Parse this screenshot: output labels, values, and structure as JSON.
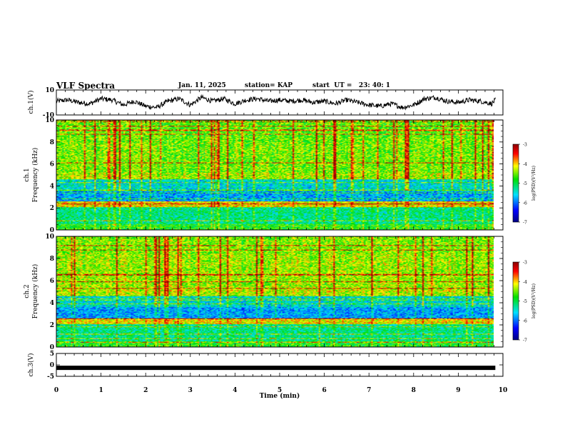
{
  "header": {
    "title": "VLF Spectra",
    "date": "Jan. 11, 2025",
    "station": "station= KAP",
    "start": "start  UT =   23: 40: 1"
  },
  "colors": {
    "background": "#ffffff",
    "axis": "#000000",
    "spectrogram_low": "#00008b",
    "spectrogram_high": "#8b0000"
  },
  "chart_data": [
    {
      "id": "ch1-waveform",
      "type": "line",
      "ylabel": "ch.1(V)",
      "ylim": [
        -10,
        10
      ],
      "yticks": [
        "10",
        "-10"
      ],
      "x": [
        0,
        0.25,
        0.5,
        0.75,
        1,
        1.25,
        1.5,
        1.75,
        2,
        2.25,
        2.5,
        2.75,
        3,
        3.25,
        3.5,
        3.75,
        4,
        4.25,
        4.5,
        4.75,
        5,
        5.25,
        5.5,
        5.75,
        6,
        6.25,
        6.5,
        6.75,
        7,
        7.25,
        7.5,
        7.75,
        8,
        8.25,
        8.5,
        8.75,
        9,
        9.25,
        9.5,
        9.75,
        9.83
      ],
      "values": [
        1,
        2,
        0,
        -1,
        3,
        2,
        -2,
        1,
        -3,
        -4,
        1,
        3,
        -2,
        4,
        1,
        3,
        -1,
        2,
        3,
        1,
        2,
        1,
        2,
        0,
        1,
        -1,
        2,
        0,
        -2,
        -3,
        -1,
        -4,
        -2,
        3,
        4,
        1,
        0,
        2,
        1,
        -1,
        2
      ]
    },
    {
      "id": "ch1-spectrogram",
      "type": "heatmap",
      "ylabel": "ch.1\nFrequency (kHz)",
      "ylim": [
        0,
        10
      ],
      "yticks": [
        "0",
        "2",
        "4",
        "6",
        "8",
        "10"
      ],
      "colorbar": {
        "label": "log(PSD)(V²/Hz)",
        "range": [
          -7,
          -3
        ],
        "ticks": [
          "-3",
          "-4",
          "-5",
          "-6",
          "-7"
        ]
      }
    },
    {
      "id": "ch2-spectrogram",
      "type": "heatmap",
      "ylabel": "ch.2\nFrequency (kHz)",
      "ylim": [
        0,
        10
      ],
      "yticks": [
        "0",
        "2",
        "4",
        "6",
        "8",
        "10"
      ],
      "colorbar": {
        "label": "log(PSD)(V²/Hz)",
        "range": [
          -7,
          -3
        ],
        "ticks": [
          "-3",
          "-4",
          "-5",
          "-6",
          "-7"
        ]
      }
    },
    {
      "id": "ch3-waveform",
      "type": "line",
      "ylabel": "ch.3(V)",
      "ylim": [
        -5,
        5
      ],
      "yticks": [
        "5",
        "0",
        "-5"
      ],
      "x": [
        0,
        9.83
      ],
      "values": [
        -1.3,
        -1.3
      ]
    }
  ],
  "xaxis": {
    "label": "Time (min)",
    "range": [
      0,
      10
    ],
    "ticks": [
      "0",
      "1",
      "2",
      "3",
      "4",
      "5",
      "6",
      "7",
      "8",
      "9",
      "10"
    ]
  }
}
